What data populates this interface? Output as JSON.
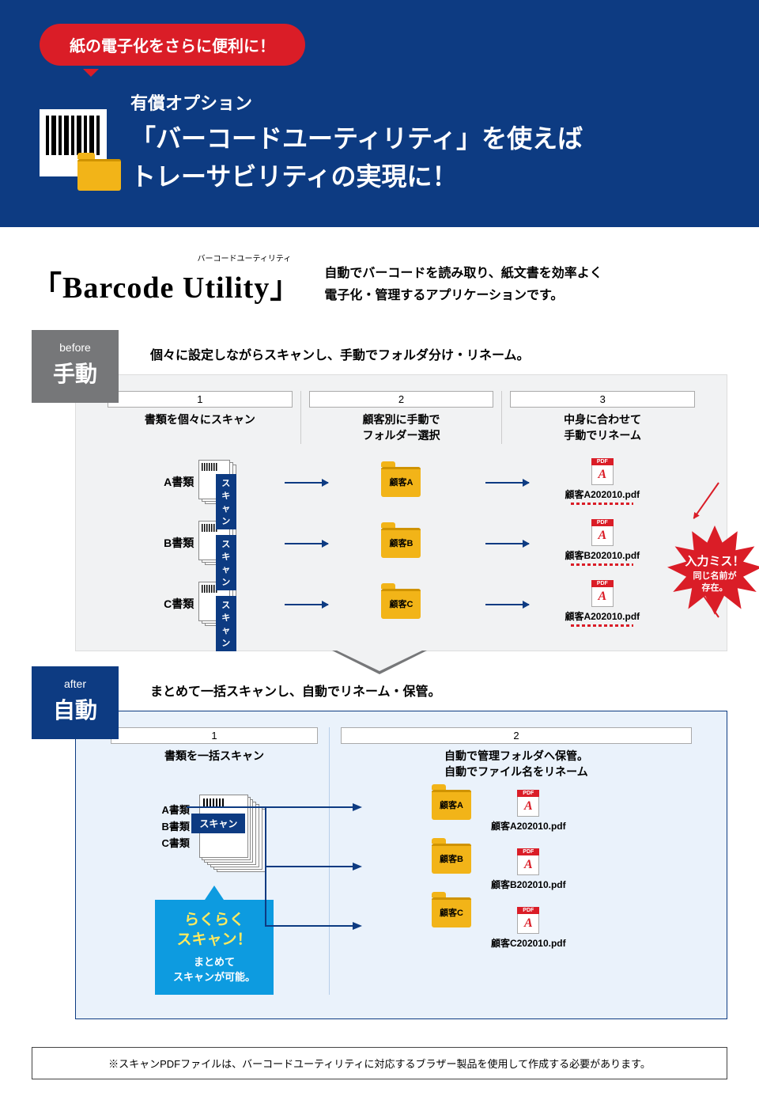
{
  "hero": {
    "pill": "紙の電子化をさらに便利に！",
    "subtitle": "有償オプション",
    "title_line1": "「バーコードユーティリティ」を使えば",
    "title_line2": "トレーサビリティの実現に！"
  },
  "product": {
    "name": "「Barcode Utility」",
    "ruby": "バーコードユーティリティ",
    "desc_line1": "自動でバーコードを読み取り、紙文書を効率よく",
    "desc_line2": "電子化・管理するアプリケーションです。"
  },
  "before": {
    "tab_en": "before",
    "tab_jp": "手動",
    "caption": "個々に設定しながらスキャンし、手動でフォルダ分け・リネーム。",
    "cols": [
      {
        "num": "1",
        "head": "書類を個々にスキャン"
      },
      {
        "num": "2",
        "head": "顧客別に手動で\nフォルダー選択"
      },
      {
        "num": "3",
        "head": "中身に合わせて\n手動でリネーム"
      }
    ],
    "rows": [
      {
        "doc": "A書類",
        "scan": "スキャン",
        "folder": "顧客A",
        "pdf": "顧客A202010.pdf"
      },
      {
        "doc": "B書類",
        "scan": "スキャン",
        "folder": "顧客B",
        "pdf": "顧客B202010.pdf"
      },
      {
        "doc": "C書類",
        "scan": "スキャン",
        "folder": "顧客C",
        "pdf": "顧客A202010.pdf"
      }
    ],
    "burst": {
      "line1": "入力ミス！",
      "line2": "同じ名前が\n存在。"
    }
  },
  "after": {
    "tab_en": "after",
    "tab_jp": "自動",
    "caption": "まとめて一括スキャンし、自動でリネーム・保管。",
    "col1": {
      "num": "1",
      "head": "書類を一括スキャン"
    },
    "col2": {
      "num": "2",
      "head_line1": "自動で管理フォルダへ保管。",
      "head_line2": "自動でファイル名をリネーム"
    },
    "docs": [
      "A書類",
      "B書類",
      "C書類"
    ],
    "scan": "スキャン",
    "callout_big": "らくらく\nスキャン！",
    "callout_small": "まとめて\nスキャンが可能。",
    "out": [
      {
        "folder": "顧客A",
        "pdf": "顧客A202010.pdf"
      },
      {
        "folder": "顧客B",
        "pdf": "顧客B202010.pdf"
      },
      {
        "folder": "顧客C",
        "pdf": "顧客C202010.pdf"
      }
    ]
  },
  "footnote": "※スキャンPDFファイルは、バーコードユーティリティに対応するブラザー製品を使用して作成する必要があります。",
  "colors": {
    "hero_bg": "#0d3b82",
    "red": "#da1d27",
    "tab_gray": "#767779",
    "folder": "#f2b418",
    "callout": "#0d9be0",
    "callout_accent": "#ffea5e",
    "before_bg": "#f1f2f3",
    "after_bg": "#eaf2fb"
  }
}
